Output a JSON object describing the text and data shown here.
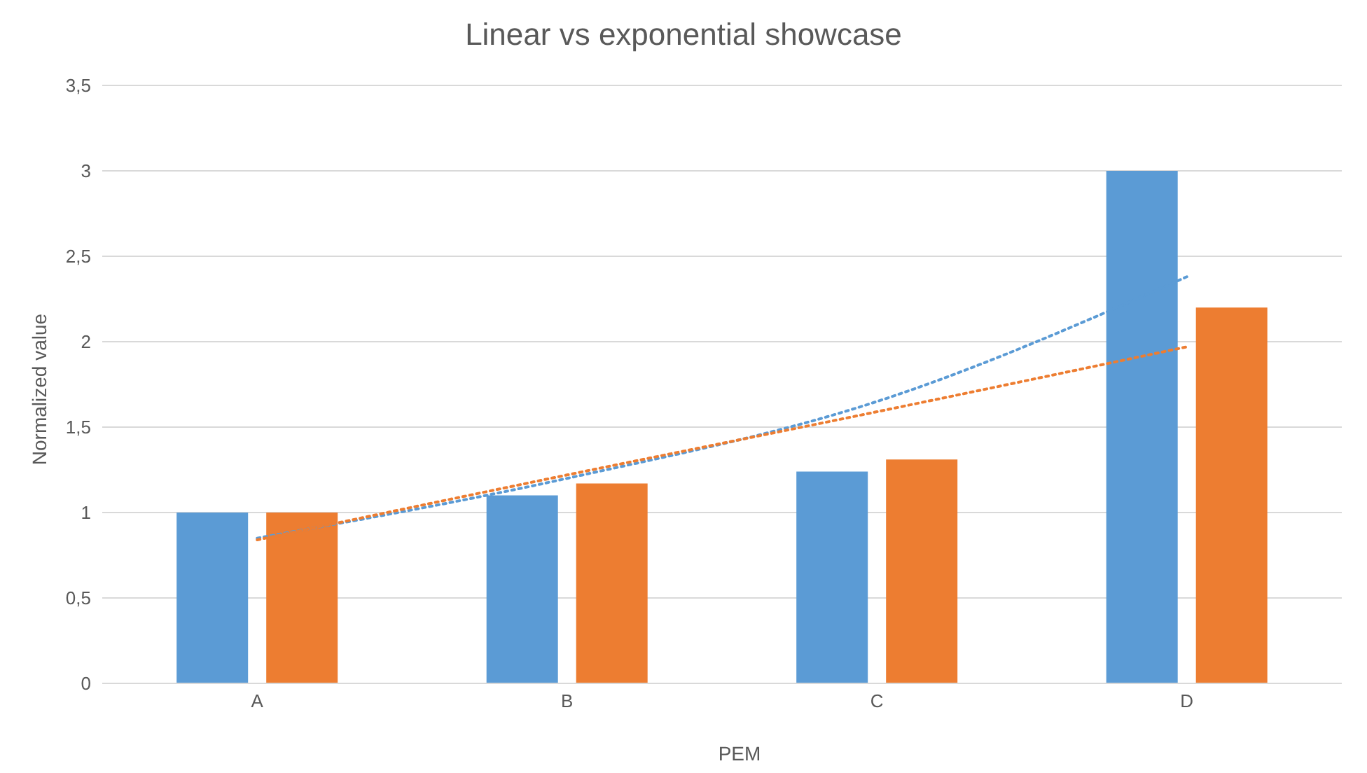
{
  "chart_data": {
    "type": "bar",
    "title": "Linear vs exponential showcase",
    "xlabel": "PEM",
    "ylabel": "Normalized value",
    "categories": [
      "A",
      "B",
      "C",
      "D"
    ],
    "series": [
      {
        "color": "#5b9bd5",
        "values": [
          1.0,
          1.1,
          1.24,
          3.0
        ]
      },
      {
        "color": "#ed7d31",
        "values": [
          1.0,
          1.17,
          1.31,
          2.2
        ]
      },
      {
        "type": "line",
        "color": "#5b9bd5",
        "line_style": "dotted",
        "values": [
          0.85,
          1.2,
          1.65,
          2.38
        ]
      },
      {
        "type": "line",
        "color": "#ed7d31",
        "line_style": "dotted",
        "values": [
          0.84,
          1.22,
          1.59,
          1.97
        ]
      }
    ],
    "ylim": [
      0,
      3.5
    ],
    "yticks": [
      0,
      {
        "value": 0.5,
        "label": "0,5"
      },
      1,
      {
        "value": 1.5,
        "label": "1,5"
      },
      2,
      {
        "value": 2.5,
        "label": "2,5"
      },
      3,
      {
        "value": 3.5,
        "label": "3,5"
      }
    ],
    "grid": "y",
    "legend": false,
    "marker": "none"
  }
}
